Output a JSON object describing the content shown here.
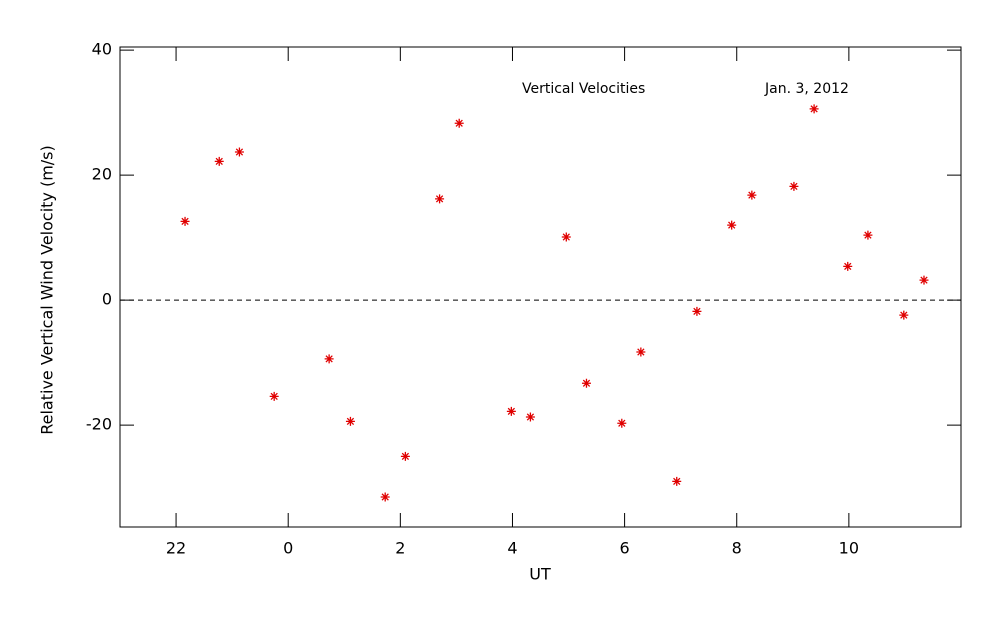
{
  "chart_data": {
    "type": "scatter",
    "annotations": [
      "Vertical Velocities",
      "Jan. 3, 2012"
    ],
    "xlabel": "UT",
    "ylabel": "Relative Vertical Wind Velocity (m/s)",
    "x": [
      22.16,
      22.77,
      23.13,
      23.75,
      24.73,
      25.11,
      25.73,
      26.09,
      26.7,
      27.05,
      27.98,
      28.32,
      28.96,
      29.32,
      29.95,
      30.29,
      30.93,
      31.29,
      31.91,
      32.27,
      33.02,
      33.38,
      33.98,
      34.34,
      34.98,
      35.34
    ],
    "values": [
      12.6,
      22.2,
      23.7,
      -15.4,
      -9.4,
      -19.4,
      -31.5,
      -25.0,
      16.2,
      28.3,
      -17.8,
      -18.7,
      10.1,
      -13.3,
      -19.7,
      -8.3,
      -29.0,
      -1.8,
      12.0,
      16.8,
      18.2,
      30.6,
      5.4,
      10.4,
      -2.4,
      3.2
    ],
    "color": "#e00000",
    "xlim": [
      21,
      36
    ],
    "xticks": [
      22,
      {
        "value": 24,
        "label": "0"
      },
      {
        "value": 26,
        "label": "2"
      },
      {
        "value": 28,
        "label": "4"
      },
      {
        "value": 30,
        "label": "6"
      },
      {
        "value": 32,
        "label": "8"
      },
      {
        "value": 34,
        "label": "10"
      }
    ],
    "ylim": [
      -36.3,
      40.5
    ],
    "yticks": [
      -20,
      0,
      20,
      40
    ],
    "zero_line": true
  }
}
